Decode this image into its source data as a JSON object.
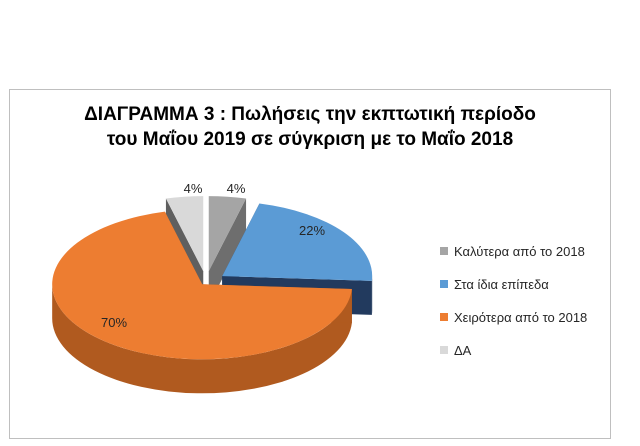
{
  "chart_data": {
    "type": "pie",
    "title_lines": [
      "ΔΙΑΓΡΑΜΜΑ 3 : Πωλήσεις την εκπτωτική περίοδο",
      "του Μαΐου 2019 σε σύγκριση με το Μαΐο 2018"
    ],
    "categories": [
      "Καλύτερα από το 2018",
      "Στα ίδια επίπεδα",
      "Χειρότερα από το 2018",
      "ΔΑ"
    ],
    "values": [
      4,
      22,
      70,
      4
    ],
    "data_labels": [
      "4%",
      "22%",
      "70%",
      "4%"
    ],
    "colors": [
      "#a5a5a5",
      "#5b9bd5",
      "#ed7d31",
      "#d9d9d9"
    ],
    "side_colors": [
      "#6e6e6e",
      "#223a5e",
      "#b05a1f",
      "#5f5f5f"
    ],
    "legend_position": "right",
    "style": "3d-exploded"
  }
}
